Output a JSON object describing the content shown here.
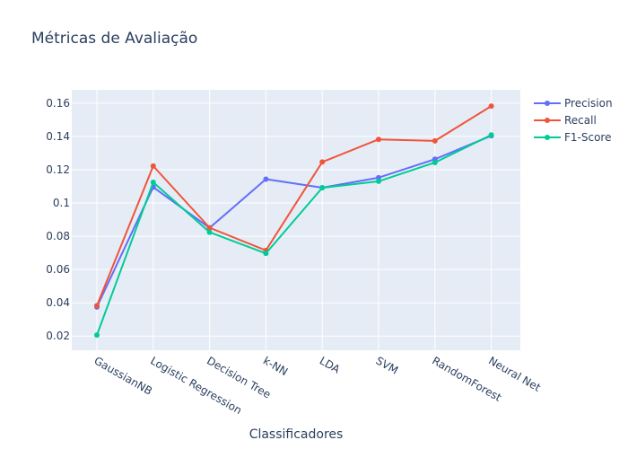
{
  "chart_data": {
    "type": "line",
    "title": "Métricas de Avaliação",
    "xlabel": "Classificadores",
    "ylabel": "",
    "categories": [
      "GaussianNB",
      "Logistic Regression",
      "Decision Tree",
      "k-NN",
      "LDA",
      "SVM",
      "RandomForest",
      "Neural Net"
    ],
    "ylim": [
      0.0115,
      0.168
    ],
    "yticks": [
      0.02,
      0.04,
      0.06,
      0.08,
      0.1,
      0.12,
      0.14,
      0.16
    ],
    "ytick_labels": [
      "0.02",
      "0.04",
      "0.06",
      "0.08",
      "0.1",
      "0.12",
      "0.14",
      "0.16"
    ],
    "grid": true,
    "legend_position": "top-right",
    "series": [
      {
        "name": "Precision",
        "color": "#636efa",
        "values": [
          0.0375,
          0.1095,
          0.085,
          0.1143,
          0.1092,
          0.1152,
          0.1263,
          0.1404
        ]
      },
      {
        "name": "Recall",
        "color": "#ef553b",
        "values": [
          0.0383,
          0.1222,
          0.0851,
          0.0715,
          0.1246,
          0.1382,
          0.1373,
          0.1582
        ]
      },
      {
        "name": "F1-Score",
        "color": "#00cc96",
        "values": [
          0.0206,
          0.1124,
          0.0824,
          0.0697,
          0.1091,
          0.113,
          0.1243,
          0.1409
        ]
      }
    ]
  }
}
